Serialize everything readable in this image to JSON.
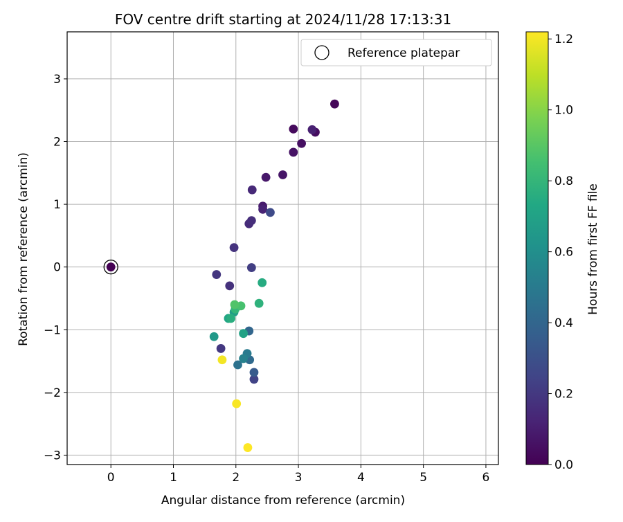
{
  "chart_data": {
    "type": "scatter",
    "title": "FOV centre drift starting at 2024/11/28 17:13:31",
    "xlabel": "Angular distance from reference (arcmin)",
    "ylabel": "Rotation from reference (arcmin)",
    "xlim": [
      -0.7,
      6.2
    ],
    "ylim": [
      -3.15,
      3.75
    ],
    "xticks": [
      0,
      1,
      2,
      3,
      4,
      5,
      6
    ],
    "yticks": [
      -3,
      -2,
      -1,
      0,
      1,
      2,
      3
    ],
    "grid": true,
    "legend": {
      "placement": "top-right",
      "entries": [
        "Reference platepar"
      ]
    },
    "colorbar": {
      "label": "Hours from first FF file",
      "range": [
        0.0,
        1.22
      ],
      "ticks": [
        0.0,
        0.2,
        0.4,
        0.6,
        0.8,
        1.0,
        1.2
      ],
      "tick_labels": [
        "0.0",
        "0.2",
        "0.4",
        "0.6",
        "0.8",
        "1.0",
        "1.2"
      ],
      "colormap": "viridis"
    },
    "reference_point": {
      "x": 0.0,
      "y": 0.0
    },
    "points": [
      {
        "x": 0.0,
        "y": 0.0,
        "c": 0.0
      },
      {
        "x": 3.58,
        "y": 2.6,
        "c": 0.02
      },
      {
        "x": 2.92,
        "y": 2.2,
        "c": 0.03
      },
      {
        "x": 3.27,
        "y": 2.15,
        "c": 0.04
      },
      {
        "x": 3.05,
        "y": 1.97,
        "c": 0.05
      },
      {
        "x": 2.92,
        "y": 1.83,
        "c": 0.06
      },
      {
        "x": 2.75,
        "y": 1.47,
        "c": 0.07
      },
      {
        "x": 2.48,
        "y": 1.43,
        "c": 0.08
      },
      {
        "x": 2.43,
        "y": 0.97,
        "c": 0.09
      },
      {
        "x": 3.22,
        "y": 2.19,
        "c": 0.11
      },
      {
        "x": 2.43,
        "y": 0.92,
        "c": 0.12
      },
      {
        "x": 2.26,
        "y": 1.23,
        "c": 0.14
      },
      {
        "x": 2.21,
        "y": 0.69,
        "c": 0.15
      },
      {
        "x": 2.25,
        "y": 0.74,
        "c": 0.16
      },
      {
        "x": 1.9,
        "y": -0.3,
        "c": 0.17
      },
      {
        "x": 1.97,
        "y": 0.31,
        "c": 0.18
      },
      {
        "x": 1.69,
        "y": -0.12,
        "c": 0.19
      },
      {
        "x": 1.76,
        "y": -1.3,
        "c": 0.2
      },
      {
        "x": 2.25,
        "y": -0.01,
        "c": 0.22
      },
      {
        "x": 2.29,
        "y": -1.79,
        "c": 0.24
      },
      {
        "x": 2.55,
        "y": 0.87,
        "c": 0.27
      },
      {
        "x": 2.29,
        "y": -1.68,
        "c": 0.35
      },
      {
        "x": 2.21,
        "y": -1.02,
        "c": 0.4
      },
      {
        "x": 2.22,
        "y": -1.48,
        "c": 0.42
      },
      {
        "x": 2.03,
        "y": -1.56,
        "c": 0.46
      },
      {
        "x": 2.18,
        "y": -1.38,
        "c": 0.5
      },
      {
        "x": 2.12,
        "y": -1.46,
        "c": 0.53
      },
      {
        "x": 1.65,
        "y": -1.11,
        "c": 0.65
      },
      {
        "x": 2.12,
        "y": -1.06,
        "c": 0.7
      },
      {
        "x": 1.97,
        "y": -0.72,
        "c": 0.68
      },
      {
        "x": 1.88,
        "y": -0.82,
        "c": 0.72
      },
      {
        "x": 2.42,
        "y": -0.25,
        "c": 0.75
      },
      {
        "x": 1.92,
        "y": -0.82,
        "c": 0.76
      },
      {
        "x": 2.37,
        "y": -0.58,
        "c": 0.78
      },
      {
        "x": 1.99,
        "y": -0.67,
        "c": 0.8
      },
      {
        "x": 2.08,
        "y": -0.62,
        "c": 0.86
      },
      {
        "x": 1.98,
        "y": -0.6,
        "c": 0.88
      },
      {
        "x": 1.78,
        "y": -1.48,
        "c": 1.2
      },
      {
        "x": 2.01,
        "y": -2.18,
        "c": 1.21
      },
      {
        "x": 2.19,
        "y": -2.88,
        "c": 1.22
      }
    ]
  }
}
